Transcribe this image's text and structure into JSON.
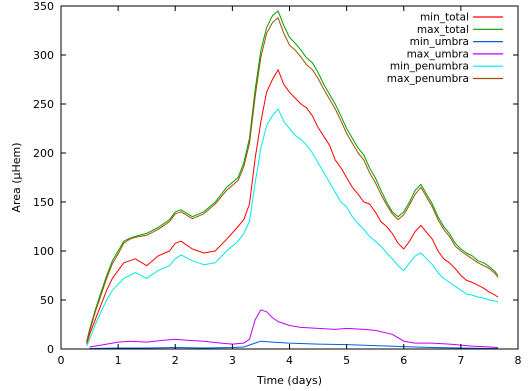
{
  "chart_data": {
    "type": "line",
    "xlabel": "Time (days)",
    "ylabel": "Area (μHem)",
    "xlim": [
      0,
      8
    ],
    "ylim": [
      0,
      350
    ],
    "x_ticks": [
      0,
      1,
      2,
      3,
      4,
      5,
      6,
      7,
      8
    ],
    "y_ticks": [
      0,
      50,
      100,
      150,
      200,
      250,
      300,
      350
    ],
    "grid": false,
    "legend_position": "top-right",
    "series": [
      {
        "name": "min_total",
        "color": "#ff0000",
        "x": [
          0.45,
          0.5,
          0.6,
          0.7,
          0.8,
          0.9,
          1.0,
          1.1,
          1.2,
          1.3,
          1.5,
          1.7,
          1.9,
          2.0,
          2.1,
          2.3,
          2.5,
          2.7,
          2.9,
          3.1,
          3.2,
          3.3,
          3.4,
          3.5,
          3.6,
          3.7,
          3.8,
          3.9,
          4.0,
          4.1,
          4.2,
          4.3,
          4.4,
          4.5,
          4.6,
          4.7,
          4.8,
          4.9,
          5.0,
          5.1,
          5.2,
          5.3,
          5.4,
          5.5,
          5.6,
          5.7,
          5.8,
          5.9,
          6.0,
          6.1,
          6.2,
          6.3,
          6.4,
          6.5,
          6.6,
          6.7,
          6.8,
          6.9,
          7.0,
          7.1,
          7.2,
          7.3,
          7.4,
          7.5,
          7.6,
          7.65
        ],
        "y": [
          5,
          15,
          30,
          45,
          60,
          72,
          80,
          88,
          90,
          92,
          85,
          95,
          100,
          108,
          110,
          102,
          98,
          100,
          112,
          125,
          132,
          148,
          195,
          232,
          262,
          275,
          285,
          270,
          262,
          256,
          250,
          246,
          238,
          226,
          217,
          208,
          193,
          185,
          175,
          165,
          158,
          150,
          148,
          140,
          130,
          125,
          118,
          108,
          102,
          110,
          120,
          126,
          119,
          112,
          100,
          92,
          88,
          82,
          75,
          70,
          68,
          65,
          62,
          58,
          55,
          53
        ]
      },
      {
        "name": "max_total",
        "color": "#00a000",
        "x": [
          0.45,
          0.5,
          0.6,
          0.7,
          0.8,
          0.9,
          1.0,
          1.1,
          1.2,
          1.3,
          1.5,
          1.7,
          1.9,
          2.0,
          2.1,
          2.3,
          2.5,
          2.7,
          2.9,
          3.1,
          3.2,
          3.3,
          3.4,
          3.5,
          3.6,
          3.7,
          3.8,
          3.9,
          4.0,
          4.1,
          4.2,
          4.3,
          4.4,
          4.5,
          4.6,
          4.7,
          4.8,
          4.9,
          5.0,
          5.1,
          5.2,
          5.3,
          5.4,
          5.5,
          5.6,
          5.7,
          5.8,
          5.9,
          6.0,
          6.1,
          6.2,
          6.3,
          6.4,
          6.5,
          6.6,
          6.7,
          6.8,
          6.9,
          7.0,
          7.1,
          7.2,
          7.3,
          7.4,
          7.5,
          7.6,
          7.65
        ],
        "y": [
          8,
          20,
          40,
          58,
          75,
          90,
          100,
          110,
          113,
          115,
          118,
          124,
          132,
          140,
          142,
          135,
          140,
          150,
          165,
          175,
          190,
          215,
          265,
          305,
          328,
          340,
          345,
          330,
          318,
          312,
          305,
          297,
          292,
          282,
          270,
          260,
          250,
          238,
          225,
          215,
          205,
          198,
          185,
          175,
          162,
          150,
          140,
          135,
          140,
          150,
          162,
          168,
          158,
          148,
          135,
          125,
          118,
          108,
          102,
          98,
          95,
          90,
          88,
          84,
          79,
          75
        ]
      },
      {
        "name": "min_umbra",
        "color": "#0060e0",
        "x": [
          0.5,
          1.0,
          1.5,
          2.0,
          2.5,
          3.0,
          3.2,
          3.4,
          3.5,
          3.7,
          4.0,
          4.5,
          5.0,
          5.5,
          6.0,
          6.5,
          7.0,
          7.5,
          7.65
        ],
        "y": [
          0.5,
          1,
          1,
          1.5,
          1,
          1.5,
          2,
          6,
          8,
          7,
          6,
          5,
          4.5,
          3.5,
          2.5,
          1.5,
          1,
          0.5,
          0.5
        ]
      },
      {
        "name": "max_umbra",
        "color": "#c000ff",
        "x": [
          0.5,
          0.7,
          0.9,
          1.0,
          1.2,
          1.5,
          1.8,
          2.0,
          2.2,
          2.5,
          2.8,
          3.0,
          3.2,
          3.3,
          3.4,
          3.5,
          3.6,
          3.7,
          3.8,
          3.9,
          4.0,
          4.2,
          4.5,
          4.8,
          5.0,
          5.3,
          5.5,
          5.8,
          6.0,
          6.2,
          6.5,
          6.8,
          7.0,
          7.2,
          7.5,
          7.65
        ],
        "y": [
          2,
          4,
          6,
          7,
          8,
          7,
          9,
          10,
          9,
          8,
          6,
          5,
          6,
          10,
          30,
          40,
          38,
          32,
          28,
          26,
          24,
          22,
          21,
          20,
          21,
          20,
          19,
          15,
          8,
          6,
          6,
          5,
          4,
          3,
          2,
          1.5
        ]
      },
      {
        "name": "min_penumbra",
        "color": "#00e8e8",
        "x": [
          0.45,
          0.5,
          0.6,
          0.7,
          0.8,
          0.9,
          1.0,
          1.1,
          1.2,
          1.3,
          1.5,
          1.7,
          1.9,
          2.0,
          2.1,
          2.3,
          2.5,
          2.7,
          2.9,
          3.1,
          3.2,
          3.3,
          3.4,
          3.5,
          3.6,
          3.7,
          3.8,
          3.9,
          4.0,
          4.1,
          4.2,
          4.3,
          4.4,
          4.5,
          4.6,
          4.7,
          4.8,
          4.9,
          5.0,
          5.1,
          5.2,
          5.3,
          5.4,
          5.5,
          5.6,
          5.7,
          5.8,
          5.9,
          6.0,
          6.1,
          6.2,
          6.3,
          6.4,
          6.5,
          6.6,
          6.7,
          6.8,
          6.9,
          7.0,
          7.1,
          7.2,
          7.3,
          7.4,
          7.5,
          7.6,
          7.65
        ],
        "y": [
          3,
          10,
          25,
          38,
          50,
          60,
          66,
          72,
          75,
          78,
          72,
          80,
          85,
          92,
          96,
          90,
          86,
          88,
          100,
          110,
          118,
          130,
          170,
          205,
          228,
          238,
          245,
          232,
          225,
          218,
          214,
          208,
          200,
          190,
          180,
          170,
          160,
          150,
          145,
          135,
          128,
          122,
          115,
          110,
          105,
          98,
          92,
          85,
          80,
          88,
          95,
          98,
          92,
          86,
          78,
          72,
          68,
          64,
          60,
          56,
          55,
          53,
          52,
          50,
          49,
          48
        ]
      },
      {
        "name": "max_penumbra",
        "color": "#a05000",
        "x": [
          0.45,
          0.5,
          0.6,
          0.7,
          0.8,
          0.9,
          1.0,
          1.1,
          1.2,
          1.3,
          1.5,
          1.7,
          1.9,
          2.0,
          2.1,
          2.3,
          2.5,
          2.7,
          2.9,
          3.1,
          3.2,
          3.3,
          3.4,
          3.5,
          3.6,
          3.7,
          3.8,
          3.9,
          4.0,
          4.1,
          4.2,
          4.3,
          4.4,
          4.5,
          4.6,
          4.7,
          4.8,
          4.9,
          5.0,
          5.1,
          5.2,
          5.3,
          5.4,
          5.5,
          5.6,
          5.7,
          5.8,
          5.9,
          6.0,
          6.1,
          6.2,
          6.3,
          6.4,
          6.5,
          6.6,
          6.7,
          6.8,
          6.9,
          7.0,
          7.1,
          7.2,
          7.3,
          7.4,
          7.5,
          7.6,
          7.65
        ],
        "y": [
          7,
          18,
          38,
          55,
          72,
          87,
          97,
          108,
          112,
          114,
          116,
          122,
          130,
          138,
          140,
          133,
          138,
          148,
          162,
          172,
          186,
          210,
          258,
          298,
          322,
          333,
          338,
          322,
          310,
          305,
          298,
          290,
          285,
          276,
          265,
          255,
          245,
          233,
          220,
          210,
          200,
          193,
          180,
          170,
          158,
          147,
          138,
          132,
          137,
          147,
          158,
          165,
          155,
          145,
          132,
          122,
          115,
          105,
          100,
          96,
          92,
          88,
          85,
          82,
          77,
          73
        ]
      }
    ]
  }
}
